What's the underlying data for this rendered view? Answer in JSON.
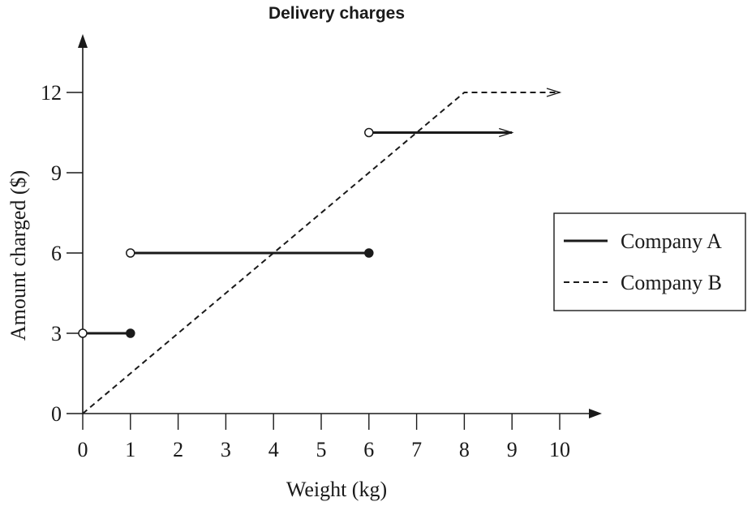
{
  "chart_data": {
    "type": "line",
    "title": "Delivery charges",
    "xlabel": "Weight (kg)",
    "ylabel": "Amount charged ($)",
    "xlim": [
      0,
      10
    ],
    "ylim": [
      0,
      12
    ],
    "x_ticks": [
      "0",
      "1",
      "2",
      "3",
      "4",
      "5",
      "6",
      "7",
      "8",
      "9",
      "10"
    ],
    "y_ticks": [
      "0",
      "3",
      "6",
      "9",
      "12"
    ],
    "grid": false,
    "legend_position": "right",
    "series": [
      {
        "name": "Company A",
        "style": "solid",
        "color": "#1a1a1a",
        "segments": [
          {
            "x": [
              0,
              1
            ],
            "y": [
              3,
              3
            ],
            "start": "open",
            "end": "closed"
          },
          {
            "x": [
              1,
              6
            ],
            "y": [
              6,
              6
            ],
            "start": "open",
            "end": "closed"
          },
          {
            "x": [
              6,
              9
            ],
            "y": [
              10.5,
              10.5
            ],
            "start": "open",
            "end": "arrow"
          }
        ]
      },
      {
        "name": "Company B",
        "style": "dashed",
        "color": "#1a1a1a",
        "segments": [
          {
            "x": [
              0,
              8,
              10
            ],
            "y": [
              0,
              12,
              12
            ],
            "start": "none",
            "end": "arrow"
          }
        ]
      }
    ]
  }
}
